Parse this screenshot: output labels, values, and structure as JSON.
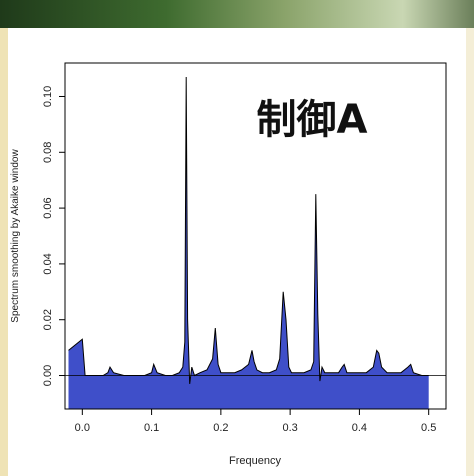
{
  "colors": {
    "fill": "#3f4fc9",
    "stroke": "#000000",
    "background": "#ffffff"
  },
  "chart_data": {
    "type": "area",
    "title": "制御A",
    "xlabel": "Frequency",
    "ylabel": "Spectrum smoothing by  Akaike  window",
    "xlim": [
      -0.025,
      0.525
    ],
    "ylim": [
      -0.012,
      0.112
    ],
    "x_ticks": [
      "0.0",
      "0.1",
      "0.2",
      "0.3",
      "0.4",
      "0.5"
    ],
    "y_ticks": [
      "0.00",
      "0.02",
      "0.04",
      "0.06",
      "0.08",
      "0.10"
    ],
    "x": [
      -0.02,
      0.0,
      0.004,
      0.01,
      0.03,
      0.037,
      0.04,
      0.045,
      0.06,
      0.09,
      0.1,
      0.103,
      0.108,
      0.12,
      0.13,
      0.14,
      0.145,
      0.148,
      0.15,
      0.152,
      0.155,
      0.158,
      0.162,
      0.17,
      0.18,
      0.188,
      0.192,
      0.196,
      0.2,
      0.21,
      0.22,
      0.23,
      0.24,
      0.245,
      0.248,
      0.252,
      0.26,
      0.27,
      0.28,
      0.285,
      0.29,
      0.294,
      0.298,
      0.302,
      0.31,
      0.32,
      0.33,
      0.334,
      0.337,
      0.34,
      0.343,
      0.346,
      0.35,
      0.36,
      0.37,
      0.375,
      0.378,
      0.382,
      0.39,
      0.4,
      0.41,
      0.42,
      0.425,
      0.428,
      0.432,
      0.44,
      0.45,
      0.46,
      0.47,
      0.474,
      0.478,
      0.49,
      0.5
    ],
    "values": [
      0.009,
      0.013,
      0.0,
      0.0,
      0.0,
      0.001,
      0.003,
      0.001,
      0.0,
      0.0,
      0.001,
      0.004,
      0.001,
      0.0,
      0.0,
      0.001,
      0.003,
      0.012,
      0.107,
      0.02,
      -0.003,
      0.003,
      0.0,
      0.001,
      0.002,
      0.006,
      0.017,
      0.004,
      0.001,
      0.001,
      0.001,
      0.002,
      0.004,
      0.009,
      0.005,
      0.002,
      0.001,
      0.001,
      0.002,
      0.006,
      0.03,
      0.02,
      0.003,
      0.001,
      0.001,
      0.001,
      0.002,
      0.005,
      0.065,
      0.022,
      -0.002,
      0.003,
      0.001,
      0.001,
      0.001,
      0.003,
      0.004,
      0.001,
      0.001,
      0.001,
      0.001,
      0.003,
      0.009,
      0.008,
      0.003,
      0.001,
      0.001,
      0.001,
      0.003,
      0.004,
      0.001,
      0.0,
      0.0
    ],
    "grid": false,
    "legend": "none"
  }
}
